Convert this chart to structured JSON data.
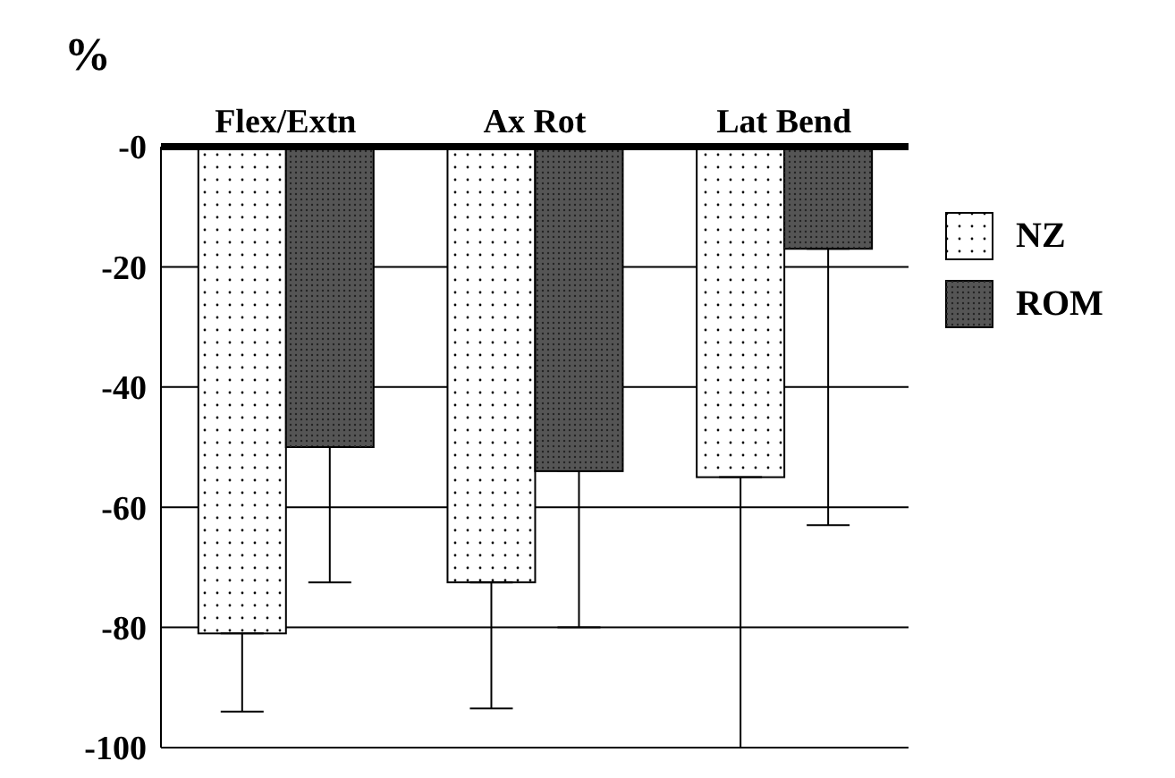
{
  "chart_data": {
    "type": "bar",
    "ylabel": "%",
    "categories": [
      "Flex/Extn",
      "Ax Rot",
      "Lat Bend"
    ],
    "series": [
      {
        "name": "NZ",
        "color": "#ffffff",
        "values": [
          -81,
          -72.5,
          -55
        ],
        "errors": [
          [
            -94,
            -81
          ],
          [
            -93.5,
            -72.5
          ],
          [
            -100,
            -55
          ]
        ]
      },
      {
        "name": "ROM",
        "color": "#555555",
        "values": [
          -50,
          -54,
          -17
        ],
        "errors": [
          [
            -72.5,
            -50
          ],
          [
            -80,
            -54
          ],
          [
            -63,
            -17
          ]
        ]
      }
    ],
    "ylim": [
      -100,
      0
    ],
    "yticks": [
      {
        "value": 0,
        "label": "-0"
      },
      -20,
      -40,
      -60,
      -80,
      -100
    ],
    "grid": "y",
    "legend": "right"
  }
}
